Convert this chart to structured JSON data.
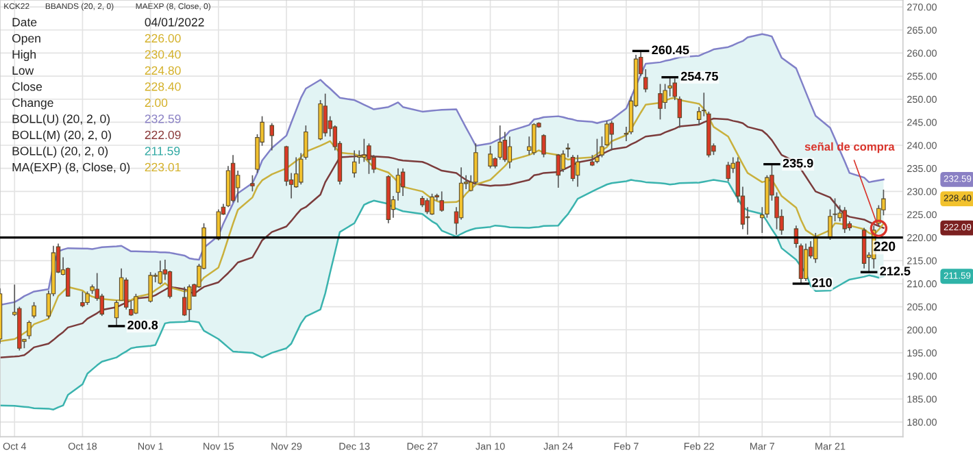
{
  "chart_data": {
    "type": "candlestick",
    "title": "KCK22",
    "x": [
      "2021-10-01",
      "2021-10-04",
      "2021-10-05",
      "2021-10-06",
      "2021-10-07",
      "2021-10-08",
      "2021-10-11",
      "2021-10-12",
      "2021-10-13",
      "2021-10-14",
      "2021-10-15",
      "2021-10-18",
      "2021-10-19",
      "2021-10-20",
      "2021-10-21",
      "2021-10-22",
      "2021-10-25",
      "2021-10-26",
      "2021-10-27",
      "2021-10-28",
      "2021-10-29",
      "2021-11-01",
      "2021-11-02",
      "2021-11-03",
      "2021-11-04",
      "2021-11-05",
      "2021-11-08",
      "2021-11-09",
      "2021-11-10",
      "2021-11-11",
      "2021-11-12",
      "2021-11-15",
      "2021-11-16",
      "2021-11-17",
      "2021-11-18",
      "2021-11-19",
      "2021-11-22",
      "2021-11-23",
      "2021-11-24",
      "2021-11-26",
      "2021-11-29",
      "2021-11-30",
      "2021-12-01",
      "2021-12-02",
      "2021-12-03",
      "2021-12-06",
      "2021-12-07",
      "2021-12-08",
      "2021-12-09",
      "2021-12-10",
      "2021-12-13",
      "2021-12-14",
      "2021-12-15",
      "2021-12-16",
      "2021-12-17",
      "2021-12-20",
      "2021-12-21",
      "2021-12-22",
      "2021-12-23",
      "2021-12-27",
      "2021-12-28",
      "2021-12-29",
      "2021-12-30",
      "2021-12-31",
      "2022-01-03",
      "2022-01-04",
      "2022-01-05",
      "2022-01-06",
      "2022-01-07",
      "2022-01-10",
      "2022-01-11",
      "2022-01-12",
      "2022-01-13",
      "2022-01-14",
      "2022-01-18",
      "2022-01-19",
      "2022-01-20",
      "2022-01-21",
      "2022-01-24",
      "2022-01-25",
      "2022-01-26",
      "2022-01-27",
      "2022-01-28",
      "2022-01-31",
      "2022-02-01",
      "2022-02-02",
      "2022-02-03",
      "2022-02-04",
      "2022-02-07",
      "2022-02-08",
      "2022-02-09",
      "2022-02-10",
      "2022-02-11",
      "2022-02-14",
      "2022-02-15",
      "2022-02-16",
      "2022-02-17",
      "2022-02-18",
      "2022-02-22",
      "2022-02-23",
      "2022-02-24",
      "2022-02-25",
      "2022-02-28",
      "2022-03-01",
      "2022-03-02",
      "2022-03-03",
      "2022-03-04",
      "2022-03-07",
      "2022-03-08",
      "2022-03-09",
      "2022-03-10",
      "2022-03-11",
      "2022-03-14",
      "2022-03-15",
      "2022-03-16",
      "2022-03-17",
      "2022-03-18",
      "2022-03-21",
      "2022-03-22",
      "2022-03-23",
      "2022-03-24",
      "2022-03-25",
      "2022-03-28",
      "2022-03-29",
      "2022-03-30",
      "2022-03-31",
      "2022-04-01"
    ],
    "ohlc": [
      [
        198,
        209,
        197,
        207.8
      ],
      [
        203.3,
        209.8,
        203,
        203.8
      ],
      [
        204.6,
        205,
        195.5,
        196
      ],
      [
        197.5,
        198,
        196,
        197.9
      ],
      [
        198.7,
        202,
        198,
        201.6
      ],
      [
        203,
        206,
        202.5,
        205.2
      ],
      [
        203,
        208.5,
        202.5,
        207.8
      ],
      [
        207.8,
        218.2,
        207.3,
        216.7
      ],
      [
        218,
        218.7,
        212.3,
        212.5
      ],
      [
        212,
        215.7,
        211.8,
        213
      ],
      [
        213.3,
        213.5,
        207.2,
        207.3
      ],
      [
        205.9,
        208.3,
        204.9,
        205.2
      ],
      [
        205.9,
        208.3,
        205.4,
        207.8
      ],
      [
        208.5,
        209.8,
        207.8,
        209.3
      ],
      [
        208.8,
        212.3,
        206.3,
        206.8
      ],
      [
        207.3,
        207.8,
        203,
        203.4
      ],
      [
        202.6,
        206.4,
        200.8,
        205.9
      ],
      [
        206.4,
        213.3,
        206.4,
        211.3
      ],
      [
        210.8,
        211.3,
        204.4,
        204.9
      ],
      [
        204.4,
        206.4,
        203,
        203.2
      ],
      [
        203.6,
        207.8,
        203.4,
        207.2
      ],
      [
        206.2,
        212.5,
        205.9,
        211.8
      ],
      [
        211.6,
        212.3,
        210.3,
        211.8
      ],
      [
        210.1,
        215,
        209.8,
        212.6
      ],
      [
        213,
        215.2,
        210.8,
        212.1
      ],
      [
        212.6,
        212.8,
        206.8,
        207.2
      ],
      [
        207,
        209.3,
        203,
        203.2
      ],
      [
        204.4,
        209.8,
        202,
        209.3
      ],
      [
        209.8,
        210,
        207.2,
        207.3
      ],
      [
        209.3,
        214.3,
        209.1,
        213.8
      ],
      [
        213.3,
        223.1,
        213.1,
        222.1
      ],
      [
        219.7,
        226.1,
        219.4,
        225.6
      ],
      [
        226.6,
        227.3,
        224.9,
        225.1
      ],
      [
        226.9,
        235.5,
        226.6,
        234.5
      ],
      [
        236.1,
        237.9,
        227.6,
        228
      ],
      [
        230.8,
        234.5,
        227.6,
        233.5
      ],
      [
        231.7,
        233.5,
        230,
        231.2
      ],
      [
        234.8,
        242.4,
        234,
        241.7
      ],
      [
        240.7,
        246.3,
        239.9,
        245
      ],
      [
        244.3,
        244.8,
        238.9,
        242.1
      ],
      [
        239.7,
        239.9,
        231.2,
        232.2
      ],
      [
        232.5,
        234,
        228.5,
        231.5
      ],
      [
        231,
        237.4,
        230.8,
        233.8
      ],
      [
        232,
        238.3,
        231.5,
        237
      ],
      [
        237.4,
        244.3,
        236.9,
        242.9
      ],
      [
        241.4,
        249.8,
        241.1,
        249
      ],
      [
        248.5,
        251.2,
        241.9,
        242.7
      ],
      [
        245.3,
        246.3,
        241.9,
        243.6
      ],
      [
        244,
        244.3,
        238.9,
        239.7
      ],
      [
        240.4,
        240.9,
        231.5,
        232.2
      ],
      [
        234,
        238.9,
        233,
        236.4
      ],
      [
        237.4,
        238.9,
        236,
        237.7
      ],
      [
        237.4,
        241.4,
        236.4,
        237.9
      ],
      [
        239.9,
        240.4,
        233.8,
        236.9
      ],
      [
        237.4,
        237.9,
        234,
        234.8
      ],
      [
        233.2,
        233.5,
        223.1,
        223.9
      ],
      [
        226.1,
        229,
        224.3,
        228.2
      ],
      [
        229.8,
        235,
        228,
        233.5
      ],
      [
        234.2,
        235,
        229,
        231
      ],
      [
        228.5,
        229,
        226.6,
        227.1
      ],
      [
        228,
        228.5,
        225.1,
        225.6
      ],
      [
        225.1,
        229.5,
        224.9,
        228.8
      ],
      [
        229.1,
        229.5,
        228,
        228.8
      ],
      [
        228,
        230,
        225.6,
        225.9
      ],
      [
        225.6,
        226.6,
        220.6,
        223.1
      ],
      [
        224.3,
        235.2,
        223.9,
        231.8
      ],
      [
        231.7,
        233.5,
        230.5,
        232
      ],
      [
        230.2,
        233.5,
        230,
        232
      ],
      [
        232,
        240.4,
        231.5,
        238.4
      ],
      [
        235.5,
        239.9,
        235,
        238.1
      ],
      [
        237.1,
        237.4,
        235,
        235.5
      ],
      [
        237.4,
        244.3,
        236.9,
        240.7
      ],
      [
        241.1,
        242.9,
        236.4,
        236.9
      ],
      [
        236.4,
        241.9,
        235,
        239.7
      ],
      [
        238.9,
        241.9,
        237.9,
        239.7
      ],
      [
        238.4,
        244.8,
        237.9,
        244.5
      ],
      [
        244.8,
        245,
        243.8,
        244
      ],
      [
        242.1,
        242.4,
        237.4,
        238.1
      ],
      [
        237.9,
        238.1,
        230.8,
        233.5
      ],
      [
        234.8,
        238.9,
        234.2,
        238.1
      ],
      [
        239.2,
        240.4,
        237.4,
        239.4
      ],
      [
        237.4,
        237.9,
        232.2,
        232.8
      ],
      [
        233.5,
        237.9,
        231,
        236.4
      ],
      [
        236.4,
        237.9,
        235.5,
        235.7
      ],
      [
        236.5,
        241.4,
        236.1,
        237.4
      ],
      [
        237.9,
        241.9,
        237.4,
        239.7
      ],
      [
        240.1,
        245.3,
        239.9,
        244.6
      ],
      [
        244.8,
        245.3,
        238.9,
        242.4
      ],
      [
        242.4,
        244,
        240.9,
        242.6
      ],
      [
        242.9,
        250.6,
        242.4,
        249.6
      ],
      [
        248.6,
        259.6,
        248.3,
        258.7
      ],
      [
        259.1,
        260.45,
        255,
        255.5
      ],
      [
        254.7,
        256.5,
        251.5,
        252.2
      ],
      [
        251.2,
        253.3,
        245.6,
        248
      ],
      [
        249.3,
        253.3,
        247.9,
        251.9
      ],
      [
        252.4,
        254.75,
        250.6,
        252.9
      ],
      [
        253.5,
        254.5,
        249.8,
        250.6
      ],
      [
        250,
        250.6,
        243.8,
        246
      ],
      [
        245.6,
        248.3,
        244.3,
        247.3
      ],
      [
        247.5,
        251.4,
        246.3,
        247.6
      ],
      [
        246.8,
        247.3,
        237.4,
        237.9
      ],
      [
        239.9,
        240.4,
        237.9,
        238.7
      ],
      [
        235.7,
        236.4,
        232.2,
        232.8
      ],
      [
        235,
        237.4,
        234,
        236.1
      ],
      [
        236.4,
        237.4,
        227.6,
        229
      ],
      [
        229,
        231,
        221.8,
        222.9
      ],
      [
        224.5,
        226.6,
        220.6,
        224.3
      ],
      [
        224.3,
        226.6,
        221,
        224.9
      ],
      [
        225.1,
        233.5,
        224.3,
        233
      ],
      [
        233.5,
        235.9,
        228,
        229.2
      ],
      [
        228.8,
        229.8,
        221.8,
        224.3
      ],
      [
        224.6,
        226.1,
        220.6,
        221.6
      ],
      [
        221.9,
        222.6,
        217.8,
        218.7
      ],
      [
        218.2,
        218.7,
        210,
        211.1
      ],
      [
        211.1,
        218.7,
        210.6,
        217.4
      ],
      [
        217.9,
        219.2,
        215.5,
        216
      ],
      [
        215.4,
        221,
        214.5,
        220
      ],
      [
        220,
        226.1,
        219.5,
        224.6
      ],
      [
        225,
        228.5,
        223.5,
        225.1
      ],
      [
        224.3,
        227,
        223.5,
        225.3
      ],
      [
        225.9,
        226.6,
        221,
        221.9
      ],
      [
        223,
        223.5,
        221.5,
        222.1
      ],
      [
        221.6,
        222.1,
        213.3,
        214.4
      ],
      [
        215.7,
        216.8,
        212.5,
        216.2
      ],
      [
        215.4,
        222.6,
        213.3,
        221.6
      ],
      [
        223.1,
        227,
        222.6,
        226.3
      ],
      [
        226,
        230.4,
        224.8,
        228.4
      ]
    ],
    "series": [
      {
        "type": "line",
        "color": "#8080c8",
        "values": [
          205.4,
          206,
          206.6,
          207.3,
          207.8,
          208.3,
          208.8,
          214,
          217,
          217.4,
          217.7,
          217.6,
          217.6,
          217.5,
          217.7,
          217.9,
          218.1,
          218.2,
          217.6,
          217,
          217,
          216.9,
          216.9,
          216.8,
          216.8,
          216.7,
          216.1,
          215.5,
          215.3,
          215.2,
          217.8,
          220.4,
          223,
          225.2,
          227.4,
          229.6,
          231.8,
          234,
          236.7,
          239.4,
          242.1,
          244.9,
          247.6,
          250.3,
          252.3,
          254.2,
          253.2,
          252.3,
          251.3,
          250.3,
          249.8,
          249.3,
          248.8,
          248.3,
          247.8,
          248.3,
          248.8,
          249.3,
          248.3,
          247.3,
          247.4,
          247.5,
          247.6,
          247.7,
          247.8,
          245.8,
          243.8,
          241.9,
          239.9,
          240.4,
          240.9,
          241.4,
          241.9,
          243.1,
          244.4,
          245.6,
          245.8,
          246.1,
          246.3,
          246.1,
          245.8,
          245.6,
          245.3,
          245.1,
          244.8,
          245.1,
          245.3,
          245.6,
          248,
          250.4,
          252.9,
          255.3,
          257.7,
          258,
          258.3,
          258.5,
          258.8,
          259.1,
          259.4,
          259.9,
          260.3,
          260.8,
          261.3,
          261.7,
          262.2,
          262.6,
          263.4,
          264.1,
          263.9,
          263.6,
          261.3,
          259,
          256.7,
          254.1,
          251.5,
          248.9,
          246.4,
          243.8,
          241.4,
          238.9,
          236.5,
          234,
          233,
          232,
          232.2,
          232.4,
          232.59
        ]
      },
      {
        "type": "line",
        "color": "#7b3b3b",
        "values": [
          194,
          194.2,
          194.3,
          194.5,
          195.3,
          196.2,
          197,
          197.8,
          198.7,
          199.5,
          200.5,
          201.4,
          202.4,
          203,
          203.6,
          204.3,
          204.9,
          205.4,
          205.9,
          206.4,
          206.8,
          207.1,
          207.5,
          208.1,
          208.7,
          209.3,
          208.8,
          208.3,
          207.8,
          208.6,
          209.3,
          210.3,
          211.3,
          212.3,
          213.4,
          214.6,
          215.7,
          217.5,
          219.4,
          221.2,
          222.4,
          223.6,
          224.9,
          226.1,
          226.6,
          229.3,
          232,
          233.8,
          235.6,
          237.4,
          237.6,
          237.7,
          237.9,
          237.7,
          237.6,
          237.4,
          237.2,
          236.9,
          236.7,
          236.4,
          236,
          235.5,
          235,
          234.5,
          234,
          233.2,
          232.5,
          232,
          231.6,
          231.2,
          231.3,
          231.3,
          231.4,
          231.5,
          232.5,
          233.5,
          233.7,
          234,
          234.2,
          234.7,
          235.2,
          235.7,
          236.3,
          236.9,
          237.5,
          238.1,
          238.6,
          239.1,
          239.6,
          240.2,
          240.7,
          241.3,
          241.9,
          242.3,
          242.8,
          243.2,
          243.6,
          244.1,
          244.5,
          245,
          245.4,
          245.8,
          245.6,
          245.3,
          245.1,
          244.8,
          244,
          243.2,
          242.3,
          241.1,
          239.5,
          237.9,
          236.4,
          234.8,
          233.2,
          231.6,
          230,
          228.7,
          227.4,
          226.1,
          225,
          224.5,
          223.9,
          223.4,
          222.9,
          222.5,
          222.09
        ],
        "lower": [
          183.6,
          183.5,
          183.4,
          183.3,
          183.2,
          183,
          182.9,
          182.7,
          183.2,
          183.6,
          185.9,
          188.2,
          190.5,
          191.4,
          192.3,
          193.1,
          194,
          194.7,
          195.3,
          196,
          196.2,
          196.5,
          196.7,
          199,
          201.4,
          201.6,
          201.7,
          201.9,
          201.8,
          201.6,
          199.8,
          198,
          197.1,
          196.2,
          195.3,
          195.2,
          195,
          194.5,
          194,
          195,
          196,
          197,
          199.2,
          201.4,
          202.9,
          204.4,
          207.9,
          212.4,
          216.8,
          221.2,
          223.1,
          225.1,
          227.1,
          227.6,
          228,
          227.3,
          226.5,
          226.1,
          225.7,
          225.1,
          224.3,
          223.5,
          222.9,
          221.5,
          220.2,
          220.8,
          221.3,
          221.7,
          222,
          222.3,
          222.6,
          222.5,
          222.4,
          222.2,
          222.1,
          222.2,
          222.3,
          222.5,
          222.6,
          223.9,
          225.1,
          226.7,
          228.4,
          230,
          230.5,
          231,
          231.5,
          231.8,
          232.2,
          232.5,
          232.3,
          232.2,
          232,
          231.8,
          231.7,
          231.5,
          231.6,
          231.8,
          231.9,
          232.1,
          232.3,
          232.5,
          232,
          230.2,
          228.4,
          226.6,
          225.9,
          225.1,
          223.5,
          221.8,
          220.2,
          217.7,
          215.2,
          213.7,
          212.3,
          209.5,
          208.4,
          208.5,
          209.1,
          209.7,
          210.3,
          210.9,
          211.5,
          211.8,
          211.6,
          211.3,
          211.59
        ],
        "upper": [
          205.4,
          206,
          206.6,
          207.3,
          207.8,
          208.3,
          208.8,
          214,
          217,
          217.4,
          217.7,
          217.6,
          217.6,
          217.5,
          217.7,
          217.9,
          218.1,
          218.2,
          217.6,
          217,
          217,
          216.9,
          216.9,
          216.8,
          216.8,
          216.7,
          216.1,
          215.5,
          215.3,
          215.2,
          217.8,
          220.4,
          223,
          225.2,
          227.4,
          229.6,
          231.8,
          234,
          236.7,
          239.4,
          242.1,
          244.9,
          247.6,
          250.3,
          252.3,
          254.2,
          253.2,
          252.3,
          251.3,
          250.3,
          249.8,
          249.3,
          248.8,
          248.3,
          247.8,
          248.3,
          248.8,
          249.3,
          248.3,
          247.3,
          247.4,
          247.5,
          247.6,
          247.7,
          247.8,
          245.8,
          243.8,
          241.9,
          239.9,
          240.4,
          240.9,
          241.4,
          241.9,
          243.1,
          244.4,
          245.6,
          245.8,
          246.1,
          246.3,
          246.1,
          245.8,
          245.6,
          245.3,
          245.1,
          244.8,
          245.1,
          245.3,
          245.6,
          248,
          250.4,
          252.9,
          255.3,
          257.7,
          258,
          258.3,
          258.5,
          258.8,
          259.1,
          259.4,
          259.9,
          260.3,
          260.8,
          261.3,
          261.7,
          262.2,
          262.6,
          263.4,
          264.1,
          263.9,
          263.6,
          261.3,
          259,
          256.7,
          254.1,
          251.5,
          248.9,
          246.4,
          243.8,
          241.4,
          238.9,
          236.5,
          234,
          233,
          232,
          232.2,
          232.4,
          232.59
        ]
      },
      {
        "type": "line",
        "color": "#3ab3ae",
        "values": [
          183.6,
          183.5,
          183.4,
          183.3,
          183.2,
          183,
          182.9,
          182.7,
          183.2,
          183.6,
          185.9,
          188.2,
          190.5,
          191.4,
          192.3,
          193.1,
          194,
          194.7,
          195.3,
          196,
          196.2,
          196.5,
          196.7,
          199,
          201.4,
          201.6,
          201.7,
          201.9,
          201.8,
          201.6,
          199.8,
          198,
          197.1,
          196.2,
          195.3,
          195.2,
          195,
          194.5,
          194,
          195,
          196,
          197,
          199.2,
          201.4,
          202.9,
          204.4,
          207.9,
          212.4,
          216.8,
          221.2,
          223.1,
          225.1,
          227.1,
          227.6,
          228,
          227.3,
          226.5,
          226.1,
          225.7,
          225.1,
          224.3,
          223.5,
          222.9,
          221.5,
          220.2,
          220.8,
          221.3,
          221.7,
          222,
          222.3,
          222.6,
          222.5,
          222.4,
          222.2,
          222.1,
          222.2,
          222.3,
          222.5,
          222.6,
          223.9,
          225.1,
          226.7,
          228.4,
          230,
          230.5,
          231,
          231.5,
          231.8,
          232.2,
          232.5,
          232.3,
          232.2,
          232,
          231.8,
          231.7,
          231.5,
          231.6,
          231.8,
          231.9,
          232.1,
          232.3,
          232.5,
          232,
          230.2,
          228.4,
          226.6,
          225.9,
          225.1,
          223.5,
          221.8,
          220.2,
          217.7,
          215.2,
          213.7,
          212.3,
          209.5,
          208.4,
          208.5,
          209.1,
          209.7,
          210.3,
          210.9,
          211.5,
          211.8,
          211.6,
          211.3,
          211.59
        ]
      },
      {
        "type": "line",
        "color": "#c9b03c",
        "values": [
          197.5,
          198,
          198.6,
          199.3,
          200,
          201.2,
          202.4,
          204.8,
          207.3,
          208.3,
          209.3,
          208.5,
          207.7,
          207.2,
          206.9,
          206.7,
          206.4,
          206.4,
          206.4,
          206.4,
          207.1,
          207.8,
          208.6,
          209.3,
          210.1,
          209.2,
          208.3,
          208.5,
          208.8,
          210,
          211.3,
          213.5,
          216.5,
          219.8,
          223,
          226,
          228.7,
          231,
          232.4,
          233.7,
          235,
          235.8,
          236.6,
          237.4,
          238.6,
          239.9,
          240.4,
          240.9,
          239.6,
          238.4,
          238.1,
          237.7,
          237.4,
          236.3,
          235.2,
          234.1,
          233.1,
          232,
          231,
          230,
          229.2,
          228.4,
          227.9,
          227.6,
          227.7,
          228.2,
          229.5,
          230.5,
          231.5,
          232.5,
          233.5,
          234.5,
          235.5,
          236.7,
          237.9,
          238.4,
          238.9,
          238.4,
          237.9,
          237.4,
          236.9,
          237.1,
          237.2,
          237.4,
          238.1,
          238.9,
          239.6,
          240.9,
          242.2,
          243.5,
          245.3,
          247.1,
          248.8,
          249.2,
          249.7,
          250.1,
          250.3,
          249.8,
          249,
          247.9,
          246,
          244,
          241.9,
          239.9,
          237.9,
          235.9,
          234,
          232,
          232.3,
          232.5,
          230.8,
          229,
          226.5,
          223.8,
          221.6,
          220.9,
          220.2,
          221.6,
          223.1,
          223,
          222.8,
          222.6,
          221.8,
          221,
          220.6,
          221.7,
          223.01
        ]
      }
    ],
    "xlim": [
      "2021-10-01",
      "2022-04-05"
    ],
    "xticks": [
      {
        "value": "2021-10-04",
        "label": "Oct 4"
      },
      {
        "value": "2021-10-18",
        "label": "Oct 18"
      },
      {
        "value": "2021-11-01",
        "label": "Nov 1"
      },
      {
        "value": "2021-11-15",
        "label": "Nov 15"
      },
      {
        "value": "2021-11-29",
        "label": "Nov 29"
      },
      {
        "value": "2021-12-13",
        "label": "Dec 13"
      },
      {
        "value": "2021-12-27",
        "label": "Dec 27"
      },
      {
        "value": "2022-01-10",
        "label": "Jan 10"
      },
      {
        "value": "2022-01-24",
        "label": "Jan 24"
      },
      {
        "value": "2022-02-07",
        "label": "Feb 7"
      },
      {
        "value": "2022-02-22",
        "label": "Feb 22"
      },
      {
        "value": "2022-03-07",
        "label": "Mar 7"
      },
      {
        "value": "2022-03-21",
        "label": "Mar 21"
      }
    ],
    "ylim": [
      176.8,
      271.5
    ],
    "yticks": [
      {
        "value": 180,
        "label": "180.00"
      },
      {
        "value": 185,
        "label": "185.00"
      },
      {
        "value": 190,
        "label": "190.00"
      },
      {
        "value": 195,
        "label": "195.00"
      },
      {
        "value": 200,
        "label": "200.00"
      },
      {
        "value": 205,
        "label": "205.00"
      },
      {
        "value": 210,
        "label": "210.00"
      },
      {
        "value": 215,
        "label": "215.00"
      },
      {
        "value": 220,
        "label": "220.00"
      },
      {
        "value": 225,
        "label": "225.00"
      },
      {
        "value": 230,
        "label": "230.00"
      },
      {
        "value": 235,
        "label": "235.00"
      },
      {
        "value": 240,
        "label": "240.00"
      },
      {
        "value": 245,
        "label": "245.00"
      },
      {
        "value": 250,
        "label": "250.00"
      },
      {
        "value": 255,
        "label": "255.00"
      },
      {
        "value": 260,
        "label": "260.00"
      },
      {
        "value": 265,
        "label": "265.00"
      },
      {
        "value": 270,
        "label": "270.00"
      }
    ],
    "grid": true,
    "ref_lines": [
      {
        "axis": "y",
        "value": 220,
        "label": "220",
        "color": "#000000"
      }
    ],
    "annotations": [
      "BBANDS (20, 2, 0)",
      "MAEXP (8, Close, 0)",
      "Date",
      "04/01/2022",
      "Open",
      "226.00",
      "High",
      "230.40",
      "Low",
      "224.80",
      "Close",
      "228.40",
      "Change",
      "2.00",
      "BOLL(U) (20, 2, 0)",
      "232.59",
      "BOLL(M) (20, 2, 0)",
      "222.09",
      "BOLL(L) (20, 2, 0)",
      "211.59",
      "MA(EXP) (8, Close, 0)",
      "223.01",
      "232.59",
      "228.40",
      "222.09",
      "211.59",
      {
        "text": "200.8",
        "x": "2021-10-25",
        "y": 200.8
      },
      {
        "text": "260.45",
        "x": "2022-02-10",
        "y": 260.45
      },
      {
        "text": "254.75",
        "x": "2022-02-16",
        "y": 254.75
      },
      {
        "text": "235.9",
        "x": "2022-03-09",
        "y": 235.9
      },
      {
        "text": "210",
        "x": "2022-03-15",
        "y": 210
      },
      {
        "text": "212.5",
        "x": "2022-03-29",
        "y": 212.5
      },
      {
        "text": "señal de compra",
        "x": "2022-03-31",
        "y": 222
      }
    ]
  }
}
